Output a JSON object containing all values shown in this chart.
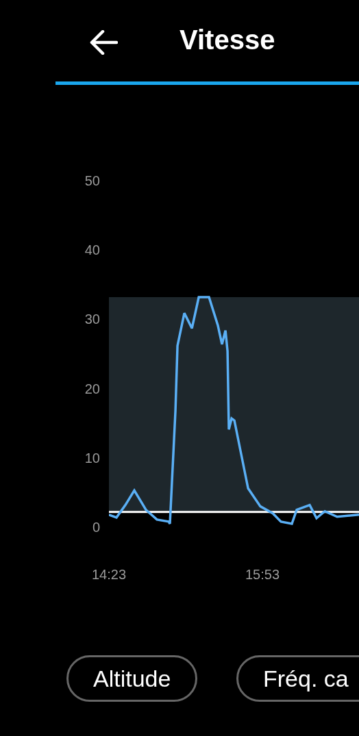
{
  "chart_data": {
    "type": "line",
    "title": "Vitesse",
    "x": [
      14.383,
      14.457,
      14.544,
      14.631,
      14.745,
      14.852,
      14.966,
      14.979,
      15.033,
      15.053,
      15.12,
      15.194,
      15.261,
      15.361,
      15.448,
      15.488,
      15.522,
      15.542,
      15.555,
      15.582,
      15.609,
      15.676,
      15.743,
      15.863,
      15.984,
      16.064,
      16.171,
      16.218,
      16.345,
      16.412,
      16.493,
      16.613,
      16.827
    ],
    "series": [
      {
        "color": "#5aaff5",
        "values": [
          1.8,
          1.4,
          3.2,
          5.3,
          2.5,
          1.1,
          0.8,
          0.5,
          16.8,
          26.2,
          30.9,
          28.7,
          33.2,
          33.2,
          29.1,
          26.4,
          28.4,
          25.4,
          14.1,
          15.7,
          15.4,
          10.5,
          5.6,
          3.0,
          2.0,
          0.8,
          0.5,
          2.5,
          3.2,
          1.3,
          2.3,
          1.5,
          1.8
        ]
      }
    ],
    "xlim": [
      14.383,
      16.827
    ],
    "xticks": [
      {
        "value": 14.383,
        "label": "14:23"
      },
      {
        "value": 15.883,
        "label": "15:53"
      }
    ],
    "ylim": [
      0,
      50
    ],
    "yticks": [
      0,
      10,
      20,
      30,
      40,
      50
    ],
    "line_style": "solid",
    "ref_lines": [
      {
        "axis": "y",
        "value": 2.2,
        "label": null,
        "color": "#ffffff"
      }
    ],
    "bands": [
      {
        "axis": "y",
        "from": 2.2,
        "to": 33.2,
        "label": null,
        "color": "#1e272c"
      }
    ],
    "annotations": [
      "Altitude",
      "Fréq. ca"
    ]
  }
}
